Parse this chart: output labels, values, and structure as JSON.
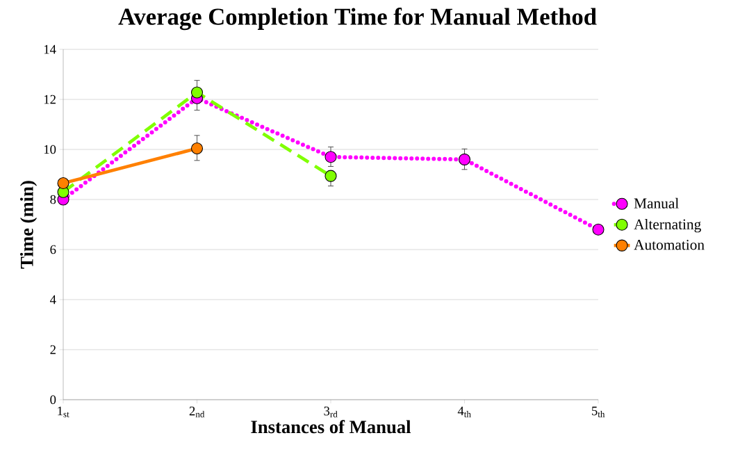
{
  "chart_data": {
    "type": "line",
    "title": "Average Completion Time for Manual Method",
    "xlabel": "Instances of Manual",
    "ylabel": "Time (min)",
    "categories": [
      "1$_{st}$",
      "2$_{nd}$",
      "3$_{rd}$",
      "4$_{th}$",
      "5$_{th}$"
    ],
    "series": [
      {
        "name": "Manual",
        "color": "#ff00ff",
        "line_style": "dotted",
        "values": [
          8.0,
          12.05,
          9.7,
          9.6,
          6.8
        ],
        "errors": [
          null,
          [
            11.57,
            12.05
          ],
          [
            9.32,
            10.1
          ],
          [
            9.2,
            10.02
          ],
          null
        ]
      },
      {
        "name": "Alternating",
        "color": "#80ff00",
        "line_style": "dashed",
        "values": [
          8.3,
          12.28,
          8.94,
          null,
          null
        ],
        "errors": [
          null,
          [
            12.28,
            12.76
          ],
          [
            8.54,
            8.94
          ],
          null,
          null
        ]
      },
      {
        "name": "Automation",
        "color": "#ff8000",
        "line_style": "solid",
        "values": [
          8.65,
          10.04,
          null,
          null,
          null
        ],
        "errors": [
          null,
          [
            9.56,
            10.56
          ],
          null,
          null,
          null
        ]
      }
    ],
    "ylim": [
      0,
      14
    ],
    "yticks": [
      0,
      2,
      4,
      6,
      8,
      10,
      12,
      14
    ],
    "grid": "y",
    "legend": "right",
    "marker": "circle"
  }
}
